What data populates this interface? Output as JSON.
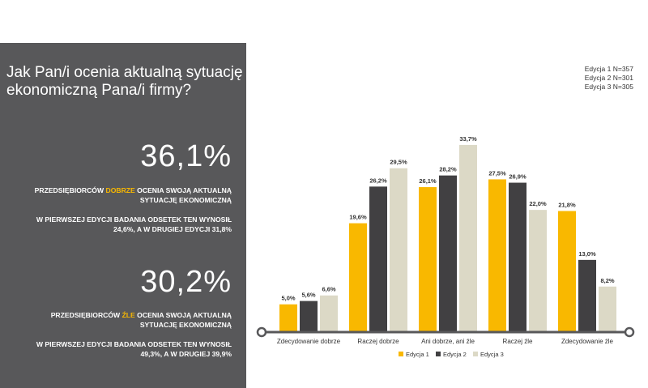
{
  "panel": {
    "question": "Jak Pan/i ocenia aktualną sytuację ekonomiczną Pana/i firmy?",
    "stat1": {
      "value": "36,1%",
      "line_prefix": "PRZEDSIĘBIORCÓW ",
      "line_highlight": "DOBRZE",
      "line_suffix": " OCENIA SWOJĄ AKTUALNĄ SYTUACJĘ EKONOMICZNĄ",
      "note": "W PIERWSZEJ EDYCJI BADANIA ODSETEK TEN WYNOSIŁ 24,6%, A W DRUGIEJ EDYCJI 31,8%"
    },
    "stat2": {
      "value": "30,2%",
      "line_prefix": "PRZEDSIĘBIORCÓW ",
      "line_highlight": "ŹLE",
      "line_suffix": " OCENIA SWOJĄ AKTUALNĄ SYTUACJĘ EKONOMICZNĄ",
      "note": "W PIERWSZEJ EDYCJI BADANIA ODSETEK TEN WYNOSIŁ 49,3%, A W DRUGIEJ 39,9%"
    }
  },
  "editions": [
    "Edycja 1 N=357",
    "Edycja 2 N=301",
    "Edycja 3 N=305"
  ],
  "colors": {
    "panel_bg": "#58585a",
    "highlight": "#f9b800",
    "series": [
      "#f9b800",
      "#414042",
      "#dcd9c6"
    ],
    "axis": "#58585a"
  },
  "chart_data": {
    "type": "bar",
    "categories": [
      "Zdecydowanie dobrze",
      "Raczej dobrze",
      "Ani dobrze, ani źle",
      "Raczej źle",
      "Zdecydowanie źle"
    ],
    "series": [
      {
        "name": "Edycja 1",
        "values": [
          5.0,
          19.6,
          26.1,
          27.5,
          21.8
        ],
        "labels": [
          "5,0%",
          "19,6%",
          "26,1%",
          "27,5%",
          "21,8%"
        ]
      },
      {
        "name": "Edycja 2",
        "values": [
          5.6,
          26.2,
          28.2,
          26.9,
          13.0
        ],
        "labels": [
          "5,6%",
          "26,2%",
          "28,2%",
          "26,9%",
          "13,0%"
        ]
      },
      {
        "name": "Edycja 3",
        "values": [
          6.6,
          29.5,
          33.7,
          22.0,
          8.2
        ],
        "labels": [
          "6,6%",
          "29,5%",
          "33,7%",
          "22,0%",
          "8,2%"
        ]
      }
    ],
    "ylim": [
      0,
      35
    ],
    "grid": false,
    "legend_position": "bottom-center"
  }
}
